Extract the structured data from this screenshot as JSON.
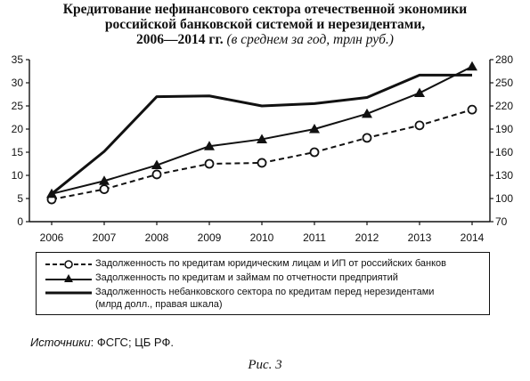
{
  "title": {
    "line1": "Кредитование нефинансового сектора отечественной экономики",
    "line2": "российской банковской системой и нерезидентами,",
    "line3_bold": "2006—2014 гг.",
    "line3_italic": "(в среднем за год, трлн руб.)"
  },
  "chart_data": {
    "type": "line",
    "x": [
      "2006",
      "2007",
      "2008",
      "2009",
      "2010",
      "2011",
      "2012",
      "2013",
      "2014"
    ],
    "y_left": {
      "ylim": [
        0,
        35
      ],
      "ticks": [
        0,
        5,
        10,
        15,
        20,
        25,
        30,
        35
      ]
    },
    "y_right": {
      "ylim": [
        70,
        280
      ],
      "ticks": [
        70,
        100,
        130,
        160,
        190,
        220,
        250,
        280
      ]
    },
    "grid": false,
    "legend_position": "bottom",
    "series": [
      {
        "name": "Задолженность по кредитам юридическим лицам и ИП от российских банков",
        "axis": "left",
        "style": "dashed",
        "marker": "circle-open",
        "values": [
          4.8,
          7.0,
          10.2,
          12.5,
          12.7,
          15.0,
          18.1,
          20.8,
          24.2
        ]
      },
      {
        "name": "Задолженность по кредитам и займам по отчетности предприятий",
        "axis": "left",
        "style": "solid",
        "marker": "triangle-filled",
        "values": [
          6.0,
          8.8,
          12.2,
          16.3,
          17.8,
          20.0,
          23.3,
          27.8,
          33.5
        ]
      },
      {
        "name": "Задолженность небанковского сектора по кредитам перед нерезидентами",
        "name_line2": "(млрд долл., правая шкала)",
        "axis": "right",
        "style": "solid-thick",
        "marker": "none",
        "values": [
          106,
          161,
          232,
          233,
          220,
          223,
          231,
          260,
          260
        ]
      }
    ]
  },
  "source": {
    "label": "Источники",
    "text": ": ФСГС; ЦБ РФ."
  },
  "caption": "Рис. 3"
}
